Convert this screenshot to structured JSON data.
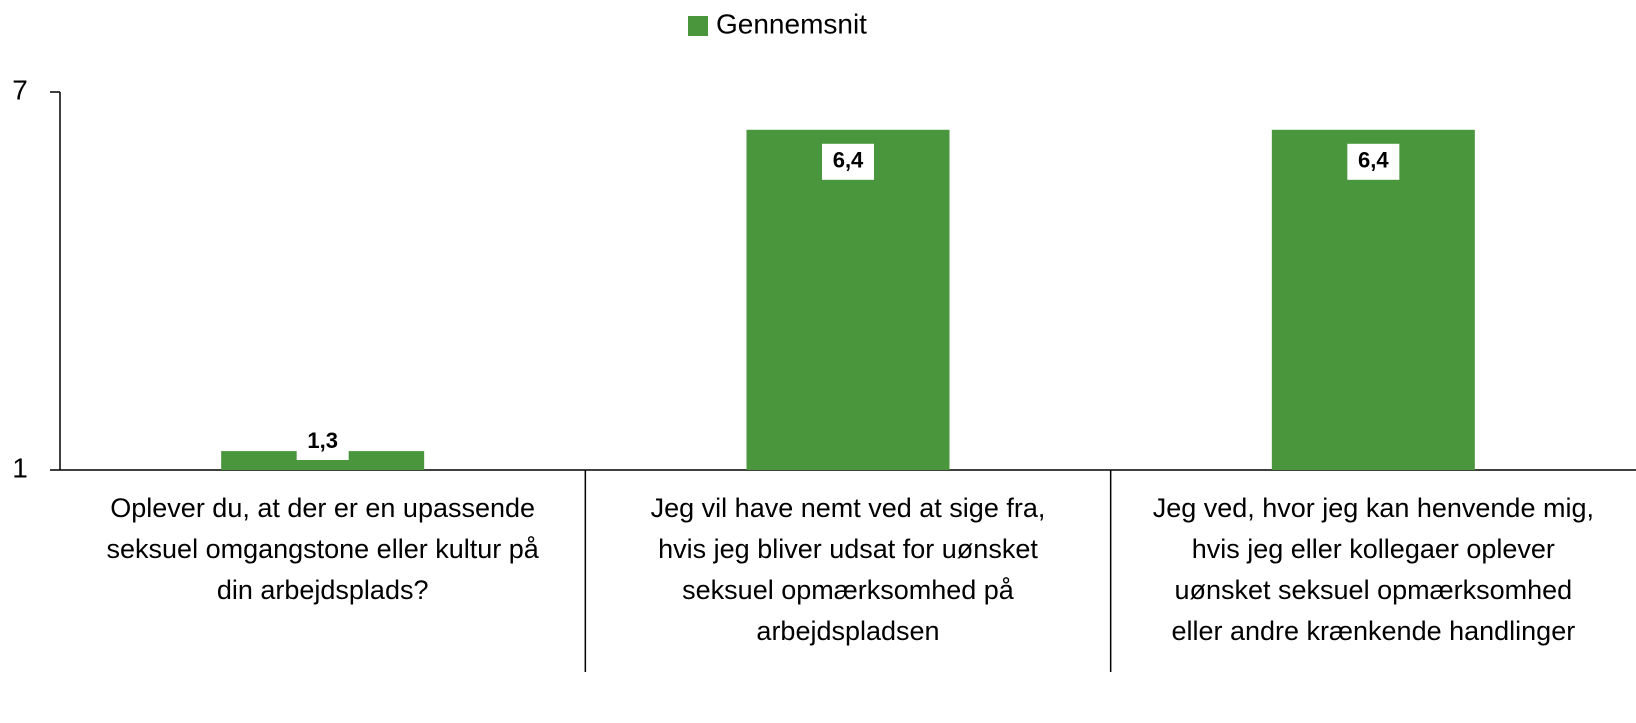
{
  "chart_data": {
    "type": "bar",
    "categories": [
      "Oplever du, at der er en upassende seksuel omgangstone eller kultur på din arbejdsplads?",
      "Jeg vil have nemt ved at sige fra, hvis jeg bliver udsat for uønsket seksuel opmærksomhed på arbejdspladsen",
      "Jeg ved, hvor jeg kan henvende mig, hvis jeg eller kollegaer oplever uønsket seksuel opmærksomhed eller andre krænkende handlinger"
    ],
    "series": [
      {
        "name": "Gennemsnit",
        "color": "#4a963c",
        "values": [
          1.3,
          6.4,
          6.4
        ],
        "value_labels": [
          "1,3",
          "6,4",
          "6,4"
        ]
      }
    ],
    "ylim": [
      1,
      7
    ],
    "yticks": [
      1,
      7
    ],
    "legend": "top"
  }
}
